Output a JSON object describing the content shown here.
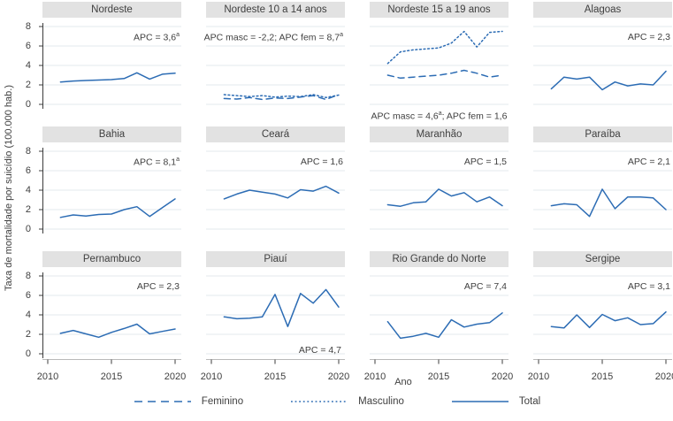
{
  "figure": {
    "y_axis_title": "Taxa de mortalidade por suicídio (100.000 hab.)",
    "x_axis_title": "Ano",
    "colors": {
      "line": "#2c6cb4",
      "header_bg": "#e2e2e2",
      "grid_line": "#e3e9ee",
      "axis_line": "#b9b9b9",
      "tick": "#3c3c3c",
      "text": "#3f3f3f"
    }
  },
  "legend": [
    {
      "label": "Feminino",
      "style": "dashed"
    },
    {
      "label": "Masculino",
      "style": "dotted"
    },
    {
      "label": "Total",
      "style": "solid"
    }
  ],
  "chart_data": {
    "type": "line",
    "x": [
      2011,
      2012,
      2013,
      2014,
      2015,
      2016,
      2017,
      2018,
      2019,
      2020
    ],
    "x_ticks": [
      2010,
      2015,
      2020
    ],
    "y_ticks": [
      0,
      2,
      4,
      6,
      8
    ],
    "xlim": [
      2010,
      2020.5
    ],
    "ylim": [
      0,
      8
    ],
    "xlabel": "Ano",
    "ylabel": "Taxa de mortalidade por suicídio (100.000 hab.)",
    "grid": true,
    "legend_position": "bottom",
    "panels": [
      {
        "title": "Nordeste",
        "apc": [
          {
            "text": "APC = 3,6"
          },
          {
            "text": "a",
            "sup": true
          }
        ],
        "apc_position": "top-right",
        "series": [
          {
            "name": "Total",
            "style": "solid",
            "values": [
              2.3,
              2.4,
              2.45,
              2.5,
              2.55,
              2.65,
              3.25,
              2.6,
              3.1,
              3.2
            ]
          }
        ]
      },
      {
        "title": "Nordeste 10 a 14 anos",
        "apc": [
          {
            "text": "APC masc = -2,2; APC fem = 8,7"
          },
          {
            "text": "a",
            "sup": true
          }
        ],
        "apc_position": "top-right",
        "series": [
          {
            "name": "Feminino",
            "style": "dashed",
            "values": [
              0.6,
              0.55,
              0.7,
              0.5,
              0.65,
              0.6,
              0.75,
              0.9,
              0.5,
              1.0
            ]
          },
          {
            "name": "Masculino",
            "style": "dotted",
            "values": [
              1.0,
              0.9,
              0.8,
              0.9,
              0.75,
              0.85,
              0.8,
              1.0,
              0.7,
              0.95
            ]
          }
        ]
      },
      {
        "title": "Nordeste 15 a 19 anos",
        "apc": [
          {
            "text": "APC masc = 4,6"
          },
          {
            "text": "a",
            "sup": true
          },
          {
            "text": "; APC fem = 1,6"
          }
        ],
        "apc_position": "bottom",
        "series": [
          {
            "name": "Feminino",
            "style": "dashed",
            "values": [
              3.0,
              2.7,
              2.8,
              2.9,
              3.0,
              3.2,
              3.5,
              3.2,
              2.8,
              3.0
            ]
          },
          {
            "name": "Masculino",
            "style": "dotted",
            "values": [
              4.2,
              5.4,
              5.6,
              5.7,
              5.8,
              6.3,
              7.5,
              5.9,
              7.4,
              7.5
            ]
          }
        ]
      },
      {
        "title": "Alagoas",
        "apc": [
          {
            "text": "APC = 2,3"
          }
        ],
        "apc_position": "top-right",
        "series": [
          {
            "name": "Total",
            "style": "solid",
            "values": [
              1.6,
              2.8,
              2.6,
              2.8,
              1.5,
              2.3,
              1.9,
              2.1,
              2.0,
              3.4
            ]
          }
        ]
      },
      {
        "title": "Bahia",
        "apc": [
          {
            "text": "APC = 8,1"
          },
          {
            "text": "a",
            "sup": true
          }
        ],
        "apc_position": "top-right",
        "series": [
          {
            "name": "Total",
            "style": "solid",
            "values": [
              1.2,
              1.45,
              1.35,
              1.5,
              1.55,
              2.0,
              2.3,
              1.3,
              2.2,
              3.1
            ]
          }
        ]
      },
      {
        "title": "Ceará",
        "apc": [
          {
            "text": "APC = 1,6"
          }
        ],
        "apc_position": "top-right",
        "series": [
          {
            "name": "Total",
            "style": "solid",
            "values": [
              3.1,
              3.6,
              4.0,
              3.8,
              3.6,
              3.2,
              4.05,
              3.9,
              4.4,
              3.7
            ]
          }
        ]
      },
      {
        "title": "Maranhão",
        "apc": [
          {
            "text": "APC = 1,5"
          }
        ],
        "apc_position": "top-right",
        "series": [
          {
            "name": "Total",
            "style": "solid",
            "values": [
              2.5,
              2.35,
              2.7,
              2.8,
              4.1,
              3.4,
              3.75,
              2.8,
              3.3,
              2.4
            ]
          }
        ]
      },
      {
        "title": "Paraíba",
        "apc": [
          {
            "text": "APC = 2,1"
          }
        ],
        "apc_position": "top-right",
        "series": [
          {
            "name": "Total",
            "style": "solid",
            "values": [
              2.4,
              2.6,
              2.5,
              1.3,
              4.1,
              2.1,
              3.3,
              3.3,
              3.2,
              2.0
            ]
          }
        ]
      },
      {
        "title": "Pernambuco",
        "apc": [
          {
            "text": "APC = 2,3"
          }
        ],
        "apc_position": "top-right",
        "series": [
          {
            "name": "Total",
            "style": "solid",
            "values": [
              2.1,
              2.4,
              2.05,
              1.7,
              2.2,
              2.6,
              3.05,
              2.05,
              2.3,
              2.55
            ]
          }
        ]
      },
      {
        "title": "Piauí",
        "apc": [
          {
            "text": "APC = 4,7"
          }
        ],
        "apc_position": "bottom-right",
        "series": [
          {
            "name": "Total",
            "style": "solid",
            "values": [
              3.8,
              3.6,
              3.65,
              3.8,
              6.1,
              2.8,
              6.2,
              5.2,
              6.6,
              4.8
            ]
          }
        ]
      },
      {
        "title": "Rio Grande do Norte",
        "apc": [
          {
            "text": "APC = 7,4"
          }
        ],
        "apc_position": "top-right",
        "series": [
          {
            "name": "Total",
            "style": "solid",
            "values": [
              3.3,
              1.6,
              1.8,
              2.1,
              1.7,
              3.5,
              2.75,
              3.05,
              3.2,
              4.2
            ]
          }
        ]
      },
      {
        "title": "Sergipe",
        "apc": [
          {
            "text": "APC = 3,1"
          }
        ],
        "apc_position": "top-right",
        "series": [
          {
            "name": "Total",
            "style": "solid",
            "values": [
              2.8,
              2.65,
              4.0,
              2.7,
              4.05,
              3.4,
              3.7,
              3.0,
              3.1,
              4.3
            ]
          }
        ]
      }
    ]
  }
}
